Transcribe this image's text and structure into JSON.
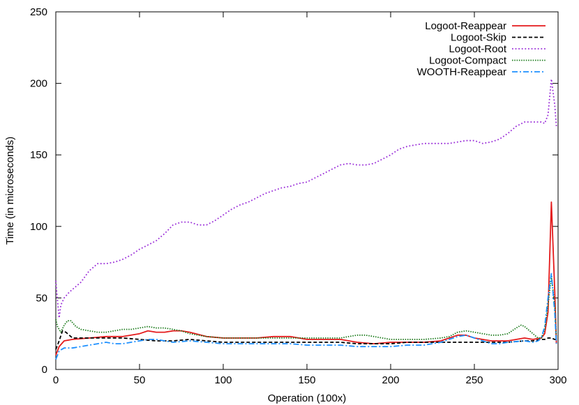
{
  "chart_data": {
    "type": "line",
    "title": "",
    "xlabel": "Operation (100x)",
    "ylabel": "Time (in microseconds)",
    "xlim": [
      0,
      300
    ],
    "ylim": [
      0,
      250
    ],
    "xticks": [
      0,
      50,
      100,
      150,
      200,
      250,
      300
    ],
    "yticks": [
      0,
      50,
      100,
      150,
      200,
      250
    ],
    "grid": false,
    "legend_position": "top-right",
    "series": [
      {
        "name": "Logoot-Reappear",
        "color": "#e41a1c",
        "dash": "solid",
        "x": [
          0,
          2,
          5,
          10,
          20,
          30,
          40,
          50,
          55,
          60,
          65,
          70,
          75,
          80,
          90,
          100,
          110,
          120,
          130,
          140,
          150,
          160,
          170,
          180,
          190,
          200,
          210,
          220,
          230,
          240,
          245,
          250,
          260,
          270,
          280,
          285,
          290,
          292,
          294,
          296,
          298,
          299
        ],
        "y": [
          10,
          16,
          20,
          21,
          22,
          23,
          23,
          25,
          27,
          26,
          26,
          27,
          27,
          26,
          23,
          22,
          22,
          22,
          23,
          23,
          21,
          21,
          21,
          19,
          18,
          19,
          19,
          19,
          20,
          24,
          24,
          22,
          20,
          20,
          22,
          21,
          22,
          25,
          40,
          117,
          55,
          18
        ]
      },
      {
        "name": "Logoot-Skip",
        "color": "#000000",
        "dash": "dashed",
        "x": [
          0,
          2,
          4,
          6,
          10,
          20,
          30,
          40,
          50,
          60,
          70,
          80,
          90,
          100,
          110,
          120,
          130,
          140,
          150,
          160,
          170,
          180,
          190,
          200,
          210,
          220,
          230,
          240,
          250,
          260,
          270,
          280,
          285,
          290,
          292,
          294,
          296,
          298,
          299
        ],
        "y": [
          14,
          20,
          27,
          26,
          22,
          22,
          22,
          22,
          21,
          20,
          20,
          21,
          20,
          19,
          19,
          19,
          19,
          19,
          19,
          19,
          19,
          18,
          18,
          18,
          19,
          19,
          19,
          19,
          19,
          19,
          19,
          20,
          20,
          21,
          21,
          22,
          22,
          21,
          21
        ]
      },
      {
        "name": "Logoot-Root",
        "color": "#9b30d9",
        "dash": "dotted",
        "x": [
          0,
          1,
          2,
          3,
          5,
          8,
          12,
          15,
          20,
          25,
          30,
          35,
          40,
          45,
          50,
          55,
          60,
          65,
          70,
          75,
          80,
          85,
          90,
          95,
          100,
          105,
          110,
          115,
          120,
          125,
          130,
          135,
          140,
          145,
          150,
          155,
          160,
          165,
          170,
          175,
          180,
          185,
          190,
          195,
          200,
          205,
          210,
          215,
          220,
          225,
          230,
          235,
          240,
          245,
          250,
          255,
          260,
          265,
          270,
          275,
          280,
          285,
          290,
          292,
          294,
          296,
          298,
          299
        ],
        "y": [
          62,
          48,
          36,
          45,
          50,
          54,
          58,
          61,
          69,
          74,
          74,
          75,
          77,
          80,
          84,
          87,
          90,
          95,
          101,
          103,
          103,
          101,
          101,
          104,
          108,
          112,
          115,
          117,
          120,
          123,
          125,
          127,
          128,
          130,
          131,
          134,
          137,
          140,
          143,
          144,
          143,
          143,
          144,
          147,
          150,
          154,
          156,
          157,
          158,
          158,
          158,
          158,
          159,
          160,
          160,
          158,
          159,
          161,
          165,
          170,
          173,
          173,
          173,
          172,
          178,
          203,
          185,
          170
        ]
      },
      {
        "name": "Logoot-Compact",
        "color": "#1a7a1a",
        "dash": "dotted-dense",
        "x": [
          0,
          1,
          3,
          5,
          7,
          9,
          12,
          15,
          20,
          25,
          30,
          35,
          40,
          45,
          50,
          55,
          60,
          65,
          70,
          75,
          80,
          90,
          100,
          110,
          120,
          130,
          140,
          150,
          160,
          170,
          175,
          180,
          185,
          190,
          195,
          200,
          210,
          220,
          230,
          235,
          240,
          245,
          250,
          260,
          265,
          270,
          275,
          278,
          280,
          285,
          288,
          290,
          292,
          294,
          296,
          298,
          299
        ],
        "y": [
          35,
          30,
          26,
          31,
          34,
          34,
          30,
          28,
          27,
          26,
          26,
          27,
          28,
          28,
          29,
          30,
          29,
          29,
          28,
          27,
          25,
          23,
          22,
          22,
          22,
          22,
          22,
          22,
          22,
          22,
          23,
          24,
          24,
          23,
          22,
          21,
          21,
          21,
          22,
          23,
          26,
          27,
          26,
          24,
          24,
          25,
          29,
          31,
          30,
          25,
          22,
          22,
          28,
          45,
          65,
          45,
          22
        ]
      },
      {
        "name": "WOOTH-Reappear",
        "color": "#1e90ff",
        "dash": "dash-dot",
        "x": [
          0,
          2,
          5,
          10,
          15,
          20,
          25,
          30,
          35,
          40,
          45,
          50,
          55,
          60,
          65,
          70,
          80,
          90,
          100,
          110,
          120,
          130,
          140,
          150,
          160,
          170,
          180,
          190,
          200,
          210,
          220,
          230,
          240,
          245,
          250,
          255,
          260,
          265,
          270,
          280,
          285,
          288,
          290,
          292,
          294,
          296,
          298,
          299
        ],
        "y": [
          7,
          13,
          15,
          15,
          16,
          17,
          18,
          19,
          18,
          18,
          19,
          20,
          21,
          21,
          20,
          19,
          20,
          19,
          18,
          18,
          18,
          18,
          18,
          17,
          17,
          17,
          16,
          16,
          16,
          17,
          17,
          19,
          23,
          24,
          22,
          20,
          18,
          18,
          19,
          20,
          19,
          20,
          22,
          30,
          50,
          67,
          40,
          18
        ]
      }
    ]
  }
}
